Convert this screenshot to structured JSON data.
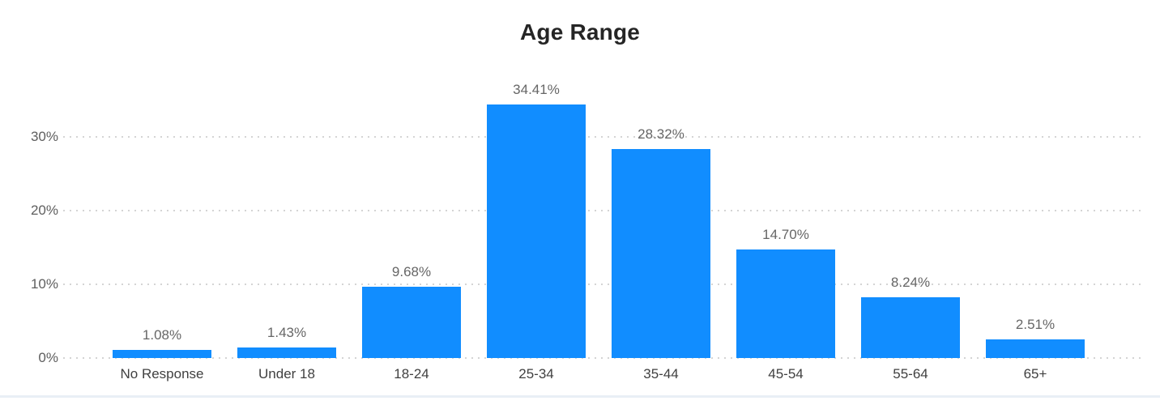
{
  "chart_data": {
    "type": "bar",
    "title": "Age Range",
    "categories": [
      "No Response",
      "Under 18",
      "18-24",
      "25-34",
      "35-44",
      "45-54",
      "55-64",
      "65+"
    ],
    "values": [
      1.08,
      1.43,
      9.68,
      34.41,
      28.32,
      14.7,
      8.24,
      2.51
    ],
    "data_labels": [
      "1.08%",
      "1.43%",
      "9.68%",
      "34.41%",
      "28.32%",
      "14.70%",
      "8.24%",
      "2.51%"
    ],
    "xlabel": "",
    "ylabel": "",
    "y_ticks": [
      "0%",
      "10%",
      "20%",
      "30%"
    ],
    "y_tick_values": [
      0,
      10,
      20,
      30
    ],
    "ylim": [
      0,
      36
    ],
    "grid": "horizontal dotted",
    "legend": "none",
    "bar_color": "#118DFF",
    "title_color": "#252525",
    "value_label_color": "#666666",
    "axis_label_color": "#404040",
    "gridline_color": "#d4d4d4"
  }
}
